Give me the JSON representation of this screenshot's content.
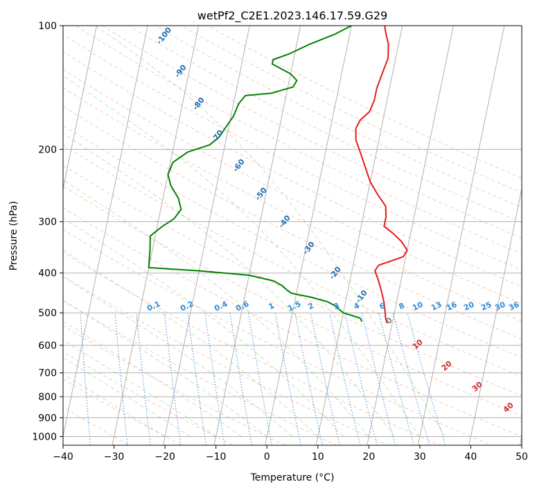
{
  "chart_data": {
    "type": "line",
    "title": "wetPf2_C2E1.2023.146.17.59.G29",
    "xlabel": "Temperature (°C)",
    "ylabel": "Pressure (hPa)",
    "xlim": [
      -40,
      50
    ],
    "ylim": [
      1050,
      100
    ],
    "y_scale": "log",
    "grid": true,
    "x_ticks": [
      -40,
      -30,
      -20,
      -10,
      0,
      10,
      20,
      30,
      40,
      50
    ],
    "y_ticks": [
      100,
      200,
      300,
      400,
      500,
      600,
      700,
      800,
      900,
      1000
    ],
    "series": [
      {
        "key": "temperature",
        "color": "#e41a1c",
        "points": [
          [
            19.0,
            530
          ],
          [
            18.5,
            515
          ],
          [
            18.0,
            490
          ],
          [
            17.5,
            470
          ],
          [
            16.5,
            440
          ],
          [
            15.5,
            415
          ],
          [
            14.5,
            395
          ],
          [
            15.0,
            383
          ],
          [
            17.0,
            375
          ],
          [
            19.5,
            365
          ],
          [
            20.0,
            352
          ],
          [
            18.5,
            335
          ],
          [
            16.5,
            320
          ],
          [
            14.5,
            308
          ],
          [
            14.5,
            292
          ],
          [
            14.0,
            275
          ],
          [
            12.0,
            258
          ],
          [
            10.0,
            240
          ],
          [
            8.5,
            222
          ],
          [
            7.0,
            205
          ],
          [
            5.5,
            190
          ],
          [
            5.0,
            178
          ],
          [
            5.5,
            170
          ],
          [
            7.0,
            162
          ],
          [
            7.5,
            152
          ],
          [
            7.5,
            142
          ],
          [
            8.0,
            130
          ],
          [
            8.5,
            120
          ],
          [
            8.0,
            111
          ],
          [
            7.0,
            104
          ],
          [
            6.5,
            100
          ]
        ]
      },
      {
        "key": "dewpoint",
        "color": "#008000",
        "points": [
          [
            14.0,
            525
          ],
          [
            13.5,
            515
          ],
          [
            10.0,
            500
          ],
          [
            9.0,
            490
          ],
          [
            8.0,
            480
          ],
          [
            6.5,
            470
          ],
          [
            3.0,
            458
          ],
          [
            -1.0,
            448
          ],
          [
            -2.0,
            440
          ],
          [
            -3.0,
            430
          ],
          [
            -5.0,
            418
          ],
          [
            -10.0,
            405
          ],
          [
            -20.0,
            395
          ],
          [
            -30.0,
            388
          ],
          [
            -30.5,
            350
          ],
          [
            -31.0,
            325
          ],
          [
            -29.0,
            308
          ],
          [
            -27.0,
            295
          ],
          [
            -26.0,
            280
          ],
          [
            -27.0,
            263
          ],
          [
            -29.0,
            245
          ],
          [
            -30.0,
            230
          ],
          [
            -29.5,
            215
          ],
          [
            -27.0,
            203
          ],
          [
            -23.0,
            195
          ],
          [
            -21.5,
            187
          ],
          [
            -20.5,
            176
          ],
          [
            -19.5,
            166
          ],
          [
            -19.0,
            155
          ],
          [
            -18.0,
            148
          ],
          [
            -13.0,
            146
          ],
          [
            -9.0,
            141
          ],
          [
            -8.5,
            136
          ],
          [
            -10.0,
            131
          ],
          [
            -14.0,
            124
          ],
          [
            -14.0,
            121
          ],
          [
            -11.0,
            117
          ],
          [
            -7.5,
            111
          ],
          [
            -3.0,
            105
          ],
          [
            0.0,
            100
          ]
        ]
      }
    ],
    "dry_adiabat_labels": [
      "-100",
      "-90",
      "-80",
      "-70",
      "-60",
      "-50",
      "-40",
      "-30",
      "-20",
      "-10"
    ],
    "mixing_ratio_labels": [
      "0.1",
      "0.2",
      "0.4",
      "0.6",
      "1",
      "1.5",
      "2",
      "3",
      "4",
      "6",
      "8",
      "10",
      "13",
      "16",
      "20",
      "25",
      "30",
      "36"
    ],
    "moist_adiabat_labels": [
      "0",
      "10",
      "20",
      "30",
      "40"
    ]
  }
}
